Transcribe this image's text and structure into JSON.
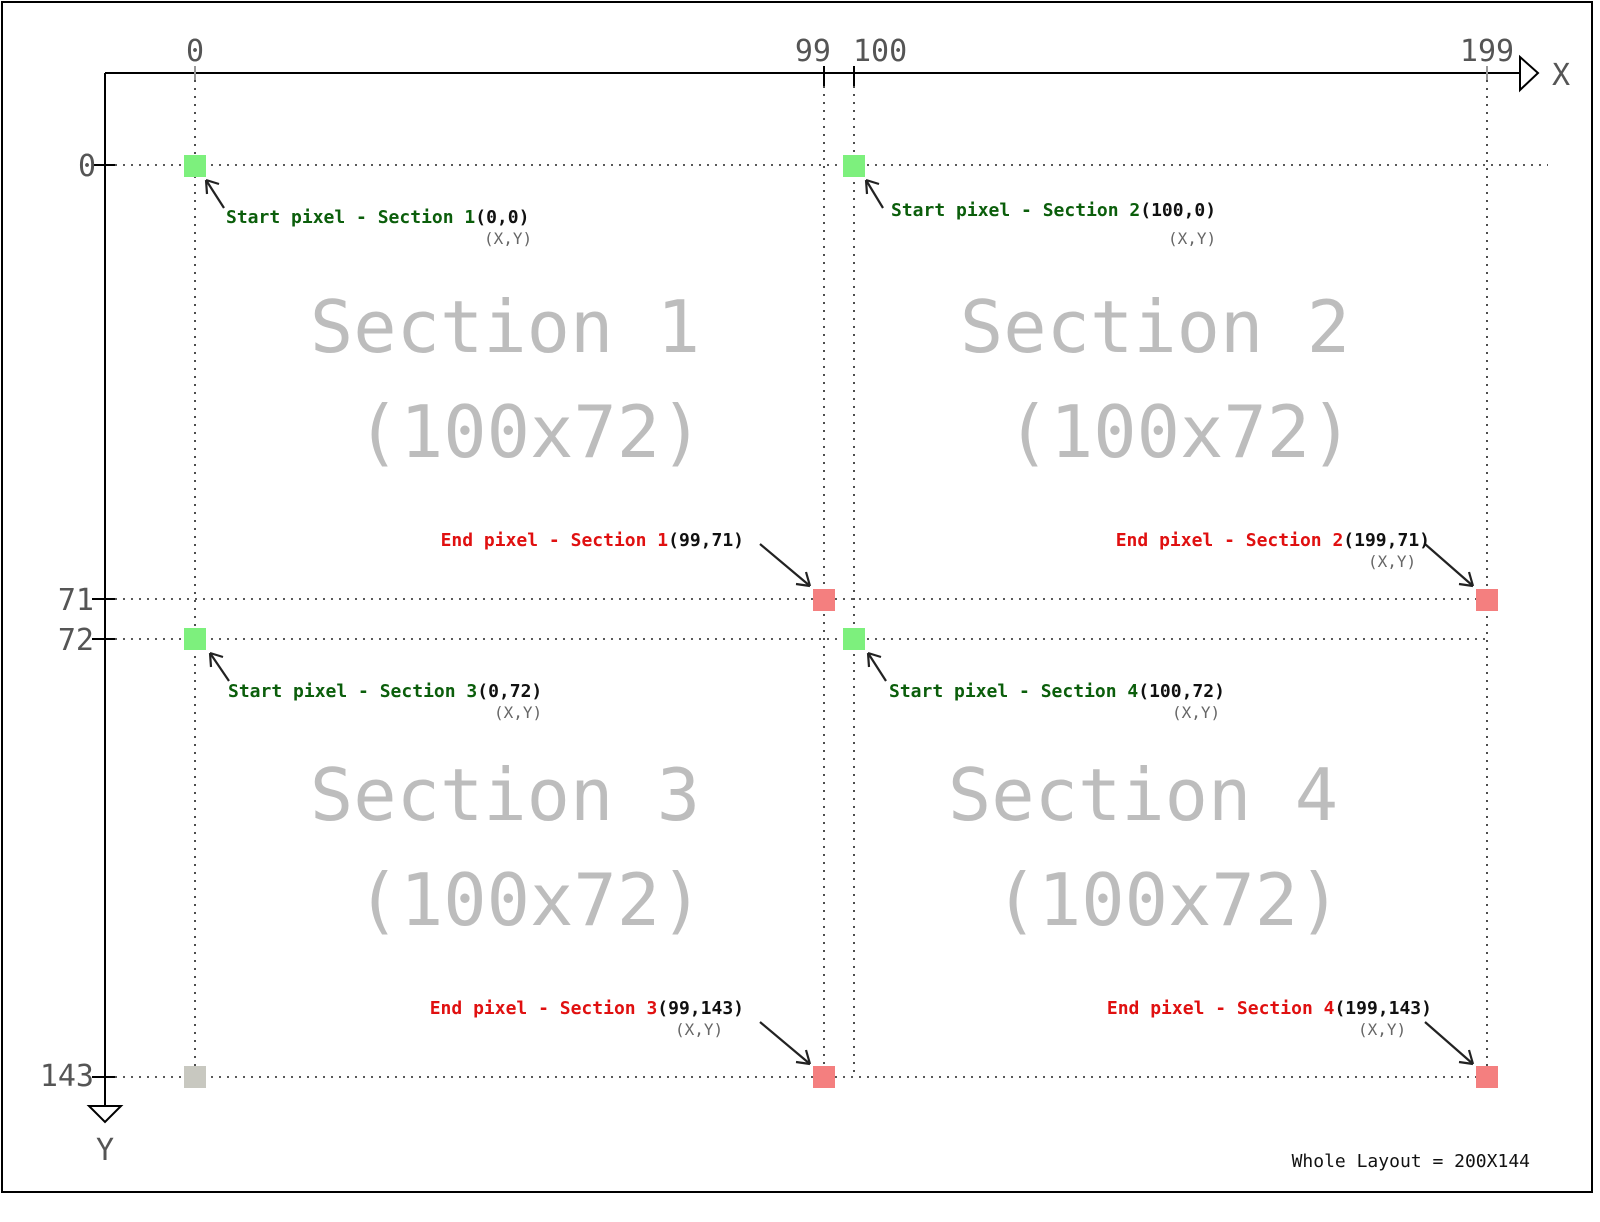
{
  "axes": {
    "x_label": "X",
    "y_label": "Y",
    "x_ticks": [
      "0",
      "99",
      "100",
      "199"
    ],
    "y_ticks": [
      "0",
      "71",
      "72",
      "143"
    ]
  },
  "sections": [
    {
      "title_line1": "Section 1",
      "title_line2": "(100x72)",
      "start_label": "Start pixel - Section 1",
      "start_coord": "(0,0)",
      "end_label": "End pixel - Section 1",
      "end_coord": "(99,71)"
    },
    {
      "title_line1": "Section 2",
      "title_line2": "(100x72)",
      "start_label": "Start pixel - Section 2",
      "start_coord": "(100,0)",
      "end_label": "End pixel - Section 2",
      "end_coord": "(199,71)"
    },
    {
      "title_line1": "Section 3",
      "title_line2": "(100x72)",
      "start_label": "Start pixel - Section 3",
      "start_coord": "(0,72)",
      "end_label": "End pixel - Section 3",
      "end_coord": "(99,143)"
    },
    {
      "title_line1": "Section 4",
      "title_line2": "(100x72)",
      "start_label": "Start pixel - Section 4",
      "start_coord": "(100,72)",
      "end_label": "End pixel - Section 4",
      "end_coord": "(199,143)"
    }
  ],
  "xy_hint": "(X,Y)",
  "footnote": "Whole Layout = 200X144",
  "colors": {
    "start_marker": "#7df07d",
    "end_marker": "#f47f7f",
    "origin_marker": "#c8c8c0",
    "start_text": "#0b5e0b",
    "end_text": "#e01010",
    "section_text": "#bdbdbd"
  }
}
